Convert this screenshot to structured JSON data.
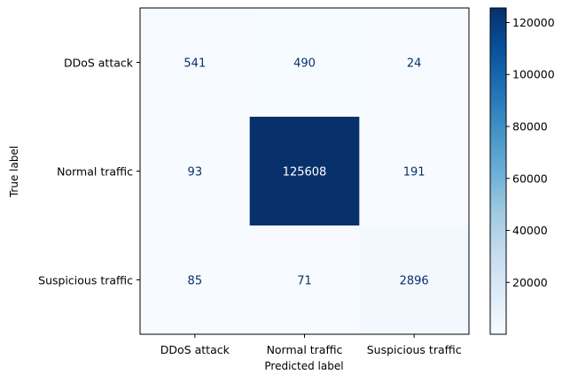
{
  "chart_data": {
    "type": "heatmap",
    "title": "",
    "xlabel": "Predicted label",
    "ylabel": "True label",
    "x_categories": [
      "DDoS attack",
      "Normal traffic",
      "Suspicious traffic"
    ],
    "y_categories": [
      "DDoS attack",
      "Normal traffic",
      "Suspicious traffic"
    ],
    "values": [
      [
        541,
        490,
        24
      ],
      [
        93,
        125608,
        191
      ],
      [
        85,
        71,
        2896
      ]
    ],
    "colormap": "Blues",
    "colorbar": {
      "range": [
        24,
        125608
      ],
      "ticks": [
        20000,
        40000,
        60000,
        80000,
        100000,
        120000
      ],
      "tick_labels": [
        "20000",
        "40000",
        "60000",
        "80000",
        "100000",
        "120000"
      ]
    }
  }
}
